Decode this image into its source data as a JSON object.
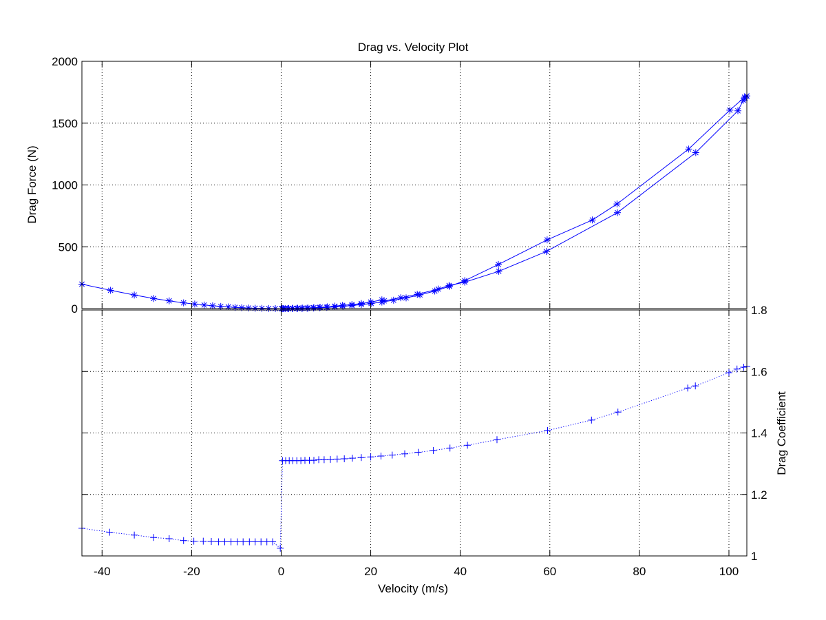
{
  "colors": {
    "series": "#0000ff",
    "axis": "#000000",
    "grid": "#000000",
    "background": "#ffffff"
  },
  "chart_data": [
    {
      "type": "line",
      "title": "Drag vs. Velocity Plot",
      "xlabel": "",
      "ylabel": "Drag Force (N)",
      "xlim": [
        -44.5,
        104
      ],
      "ylim": [
        0,
        2000
      ],
      "xticks": [
        -40,
        -20,
        0,
        20,
        40,
        60,
        80,
        100
      ],
      "yticks": [
        0,
        500,
        1000,
        1500,
        2000
      ],
      "grid": true,
      "marker": "*",
      "line_style": "solid",
      "series": [
        {
          "name": "",
          "points": [
            [
              -44.5,
              198
            ],
            [
              -38.1,
              148
            ],
            [
              -32.8,
              110
            ],
            [
              -28.5,
              82
            ],
            [
              -25.0,
              63
            ],
            [
              -21.8,
              47
            ],
            [
              -19.3,
              37
            ],
            [
              -17.2,
              29
            ],
            [
              -15.3,
              23
            ],
            [
              -13.5,
              18
            ],
            [
              -11.8,
              14
            ],
            [
              -10.3,
              10
            ],
            [
              -8.8,
              7
            ],
            [
              -7.3,
              5
            ],
            [
              -5.8,
              3
            ],
            [
              -4.3,
              2
            ],
            [
              -2.8,
              1
            ],
            [
              -1.3,
              0.5
            ],
            [
              0.2,
              0
            ],
            [
              0.5,
              0
            ],
            [
              1.5,
              0.3
            ],
            [
              2.5,
              1
            ],
            [
              3.5,
              1.5
            ],
            [
              4.5,
              2
            ],
            [
              5.8,
              3
            ],
            [
              7.2,
              5
            ],
            [
              8.6,
              7
            ],
            [
              10.2,
              10
            ],
            [
              12.0,
              14
            ],
            [
              13.8,
              19
            ],
            [
              15.8,
              25
            ],
            [
              17.9,
              33
            ],
            [
              20.1,
              42
            ],
            [
              22.5,
              53
            ],
            [
              25.1,
              68
            ],
            [
              27.9,
              87
            ],
            [
              31.0,
              111
            ],
            [
              34.3,
              142
            ],
            [
              37.6,
              180
            ],
            [
              41.0,
              226
            ],
            [
              48.5,
              357
            ],
            [
              59.4,
              556
            ],
            [
              69.5,
              717
            ],
            [
              75.0,
              846
            ],
            [
              91.0,
              1290
            ],
            [
              100.2,
              1605
            ],
            [
              103.5,
              1710
            ],
            [
              104.0,
              1720
            ]
          ]
        },
        {
          "name": "",
          "points": [
            [
              104.0,
              1720
            ],
            [
              103.6,
              1700
            ],
            [
              103.2,
              1684
            ],
            [
              102.0,
              1600
            ],
            [
              92.6,
              1262
            ],
            [
              75.1,
              776
            ],
            [
              59.2,
              462
            ],
            [
              48.6,
              302
            ],
            [
              41.0,
              214
            ],
            [
              37.5,
              187
            ],
            [
              35.1,
              158
            ],
            [
              30.4,
              116
            ],
            [
              26.7,
              88
            ],
            [
              23.0,
              63
            ],
            [
              22.5,
              71
            ],
            [
              20.0,
              53
            ],
            [
              17.9,
              41
            ],
            [
              15.8,
              33
            ],
            [
              13.7,
              26
            ],
            [
              12.0,
              20
            ],
            [
              10.3,
              14
            ],
            [
              8.7,
              11
            ],
            [
              7.3,
              8
            ],
            [
              6.0,
              5
            ],
            [
              4.8,
              4
            ],
            [
              3.7,
              3
            ],
            [
              2.6,
              2
            ],
            [
              1.7,
              1
            ],
            [
              0.9,
              0.5
            ],
            [
              0.4,
              0.2
            ],
            [
              0.1,
              0
            ]
          ]
        }
      ]
    },
    {
      "type": "line",
      "title": "",
      "xlabel": "Velocity (m/s)",
      "ylabel": "Drag Coefficient",
      "xlim": [
        -44.5,
        104
      ],
      "ylim": [
        1,
        1.8
      ],
      "xticks": [
        -40,
        -20,
        0,
        20,
        40,
        60,
        80,
        100
      ],
      "yticks": [
        1,
        1.2,
        1.4,
        1.6,
        1.8
      ],
      "grid": true,
      "yaxis_location": "right",
      "marker": "+",
      "line_style": "dotted",
      "series": [
        {
          "name": "",
          "points": [
            [
              -44.5,
              1.09
            ],
            [
              -38.3,
              1.077
            ],
            [
              -32.8,
              1.068
            ],
            [
              -28.5,
              1.06
            ],
            [
              -25.0,
              1.056
            ],
            [
              -21.8,
              1.05
            ],
            [
              -19.5,
              1.048
            ],
            [
              -17.4,
              1.048
            ],
            [
              -15.6,
              1.047
            ],
            [
              -14.0,
              1.046
            ],
            [
              -12.6,
              1.046
            ],
            [
              -11.2,
              1.046
            ],
            [
              -9.8,
              1.046
            ],
            [
              -8.5,
              1.046
            ],
            [
              -7.1,
              1.046
            ],
            [
              -5.8,
              1.046
            ],
            [
              -4.5,
              1.046
            ],
            [
              -3.2,
              1.046
            ],
            [
              -1.9,
              1.046
            ],
            [
              -0.2,
              1.025
            ],
            [
              0.3,
              1.31
            ],
            [
              1.0,
              1.31
            ],
            [
              1.8,
              1.31
            ],
            [
              2.6,
              1.31
            ],
            [
              3.5,
              1.31
            ],
            [
              4.4,
              1.31
            ],
            [
              5.3,
              1.311
            ],
            [
              6.3,
              1.311
            ],
            [
              7.3,
              1.311
            ],
            [
              8.4,
              1.313
            ],
            [
              9.6,
              1.313
            ],
            [
              11.0,
              1.314
            ],
            [
              12.5,
              1.315
            ],
            [
              14.1,
              1.316
            ],
            [
              15.9,
              1.318
            ],
            [
              17.9,
              1.32
            ],
            [
              20.0,
              1.322
            ],
            [
              22.3,
              1.325
            ],
            [
              24.8,
              1.328
            ],
            [
              27.6,
              1.332
            ],
            [
              30.6,
              1.337
            ],
            [
              34.0,
              1.343
            ],
            [
              37.7,
              1.351
            ],
            [
              41.6,
              1.36
            ],
            [
              48.2,
              1.378
            ],
            [
              59.5,
              1.408
            ],
            [
              69.3,
              1.442
            ],
            [
              75.2,
              1.468
            ],
            [
              90.8,
              1.546
            ],
            [
              92.5,
              1.553
            ],
            [
              100.0,
              1.596
            ],
            [
              101.8,
              1.608
            ],
            [
              103.3,
              1.614
            ],
            [
              104.0,
              1.617
            ]
          ]
        }
      ]
    }
  ]
}
